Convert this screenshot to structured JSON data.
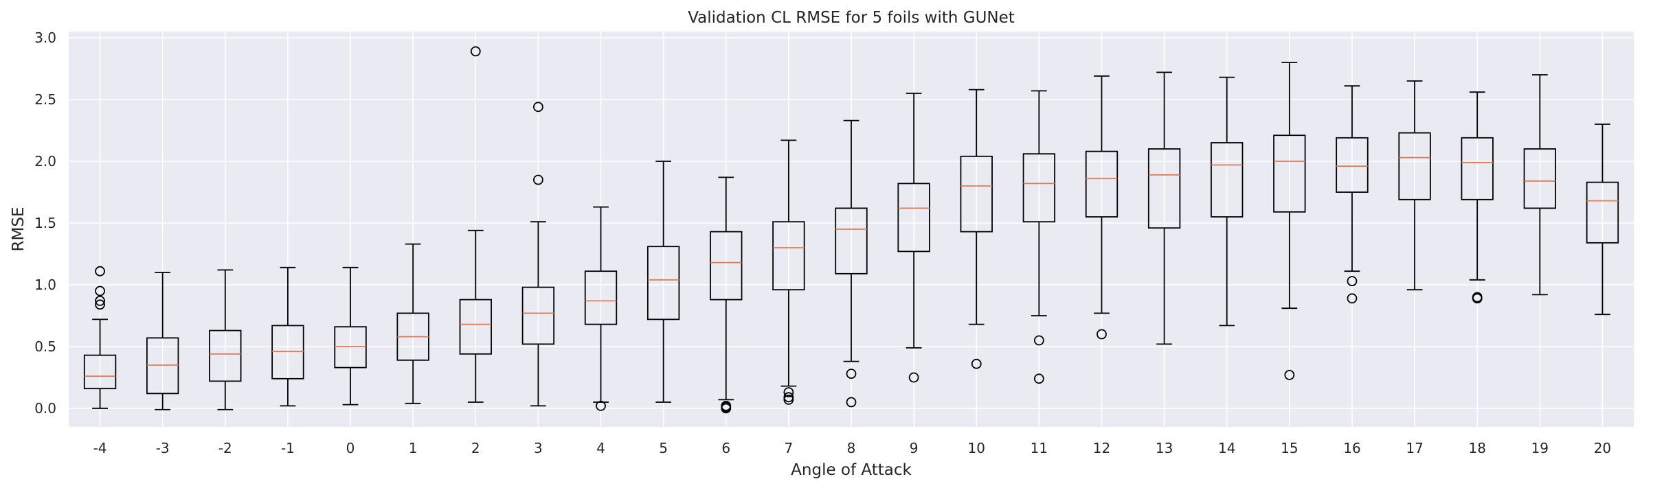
{
  "chart_data": {
    "type": "boxplot",
    "title": "Validation CL RMSE for 5 foils with GUNet",
    "xlabel": "Angle of Attack",
    "ylabel": "RMSE",
    "ylim": [
      -0.15,
      3.05
    ],
    "yticks": [
      0.0,
      0.5,
      1.0,
      1.5,
      2.0,
      2.5,
      3.0
    ],
    "ytick_labels": [
      "0.0",
      "0.5",
      "1.0",
      "1.5",
      "2.0",
      "2.5",
      "3.0"
    ],
    "grid": true,
    "background": "#eaeaf2",
    "grid_color": "#ffffff",
    "box_color": "#000000",
    "median_color": "#e07b54",
    "categories": [
      "-4",
      "-3",
      "-2",
      "-1",
      "0",
      "1",
      "2",
      "3",
      "4",
      "5",
      "6",
      "7",
      "8",
      "9",
      "10",
      "11",
      "12",
      "13",
      "14",
      "15",
      "16",
      "17",
      "18",
      "19",
      "20"
    ],
    "boxes": [
      {
        "label": "-4",
        "whisker_low": 0.0,
        "q1": 0.16,
        "median": 0.26,
        "q3": 0.43,
        "whisker_high": 0.72,
        "outliers": [
          0.84,
          0.87,
          0.95,
          1.11
        ]
      },
      {
        "label": "-3",
        "whisker_low": -0.01,
        "q1": 0.12,
        "median": 0.35,
        "q3": 0.57,
        "whisker_high": 1.1,
        "outliers": []
      },
      {
        "label": "-2",
        "whisker_low": -0.01,
        "q1": 0.22,
        "median": 0.44,
        "q3": 0.63,
        "whisker_high": 1.12,
        "outliers": []
      },
      {
        "label": "-1",
        "whisker_low": 0.02,
        "q1": 0.24,
        "median": 0.46,
        "q3": 0.67,
        "whisker_high": 1.14,
        "outliers": []
      },
      {
        "label": "0",
        "whisker_low": 0.03,
        "q1": 0.33,
        "median": 0.5,
        "q3": 0.66,
        "whisker_high": 1.14,
        "outliers": []
      },
      {
        "label": "1",
        "whisker_low": 0.04,
        "q1": 0.39,
        "median": 0.58,
        "q3": 0.77,
        "whisker_high": 1.33,
        "outliers": []
      },
      {
        "label": "2",
        "whisker_low": 0.05,
        "q1": 0.44,
        "median": 0.68,
        "q3": 0.88,
        "whisker_high": 1.44,
        "outliers": [
          2.89
        ]
      },
      {
        "label": "3",
        "whisker_low": 0.02,
        "q1": 0.52,
        "median": 0.77,
        "q3": 0.98,
        "whisker_high": 1.51,
        "outliers": [
          1.85,
          2.44
        ]
      },
      {
        "label": "4",
        "whisker_low": 0.05,
        "q1": 0.68,
        "median": 0.87,
        "q3": 1.11,
        "whisker_high": 1.63,
        "outliers": [
          0.02
        ]
      },
      {
        "label": "5",
        "whisker_low": 0.05,
        "q1": 0.72,
        "median": 1.04,
        "q3": 1.31,
        "whisker_high": 2.0,
        "outliers": []
      },
      {
        "label": "6",
        "whisker_low": 0.07,
        "q1": 0.88,
        "median": 1.18,
        "q3": 1.43,
        "whisker_high": 1.87,
        "outliers": [
          0.0,
          0.01,
          0.02
        ]
      },
      {
        "label": "7",
        "whisker_low": 0.18,
        "q1": 0.96,
        "median": 1.3,
        "q3": 1.51,
        "whisker_high": 2.17,
        "outliers": [
          0.07,
          0.09,
          0.13
        ]
      },
      {
        "label": "8",
        "whisker_low": 0.38,
        "q1": 1.09,
        "median": 1.45,
        "q3": 1.62,
        "whisker_high": 2.33,
        "outliers": [
          0.05,
          0.28
        ]
      },
      {
        "label": "9",
        "whisker_low": 0.49,
        "q1": 1.27,
        "median": 1.62,
        "q3": 1.82,
        "whisker_high": 2.55,
        "outliers": [
          0.25
        ]
      },
      {
        "label": "10",
        "whisker_low": 0.68,
        "q1": 1.43,
        "median": 1.8,
        "q3": 2.04,
        "whisker_high": 2.58,
        "outliers": [
          0.36
        ]
      },
      {
        "label": "11",
        "whisker_low": 0.75,
        "q1": 1.51,
        "median": 1.82,
        "q3": 2.06,
        "whisker_high": 2.57,
        "outliers": [
          0.24,
          0.55
        ]
      },
      {
        "label": "12",
        "whisker_low": 0.77,
        "q1": 1.55,
        "median": 1.86,
        "q3": 2.08,
        "whisker_high": 2.69,
        "outliers": [
          0.6
        ]
      },
      {
        "label": "13",
        "whisker_low": 0.52,
        "q1": 1.46,
        "median": 1.89,
        "q3": 2.1,
        "whisker_high": 2.72,
        "outliers": []
      },
      {
        "label": "14",
        "whisker_low": 0.67,
        "q1": 1.55,
        "median": 1.97,
        "q3": 2.15,
        "whisker_high": 2.68,
        "outliers": []
      },
      {
        "label": "15",
        "whisker_low": 0.81,
        "q1": 1.59,
        "median": 2.0,
        "q3": 2.21,
        "whisker_high": 2.8,
        "outliers": [
          0.27
        ]
      },
      {
        "label": "16",
        "whisker_low": 1.11,
        "q1": 1.75,
        "median": 1.96,
        "q3": 2.19,
        "whisker_high": 2.61,
        "outliers": [
          0.89,
          1.03
        ]
      },
      {
        "label": "17",
        "whisker_low": 0.96,
        "q1": 1.69,
        "median": 2.03,
        "q3": 2.23,
        "whisker_high": 2.65,
        "outliers": []
      },
      {
        "label": "18",
        "whisker_low": 1.04,
        "q1": 1.69,
        "median": 1.99,
        "q3": 2.19,
        "whisker_high": 2.56,
        "outliers": [
          0.89,
          0.9
        ]
      },
      {
        "label": "19",
        "whisker_low": 0.92,
        "q1": 1.62,
        "median": 1.84,
        "q3": 2.1,
        "whisker_high": 2.7,
        "outliers": []
      },
      {
        "label": "20",
        "whisker_low": 0.76,
        "q1": 1.34,
        "median": 1.68,
        "q3": 1.83,
        "whisker_high": 2.3,
        "outliers": []
      }
    ]
  }
}
